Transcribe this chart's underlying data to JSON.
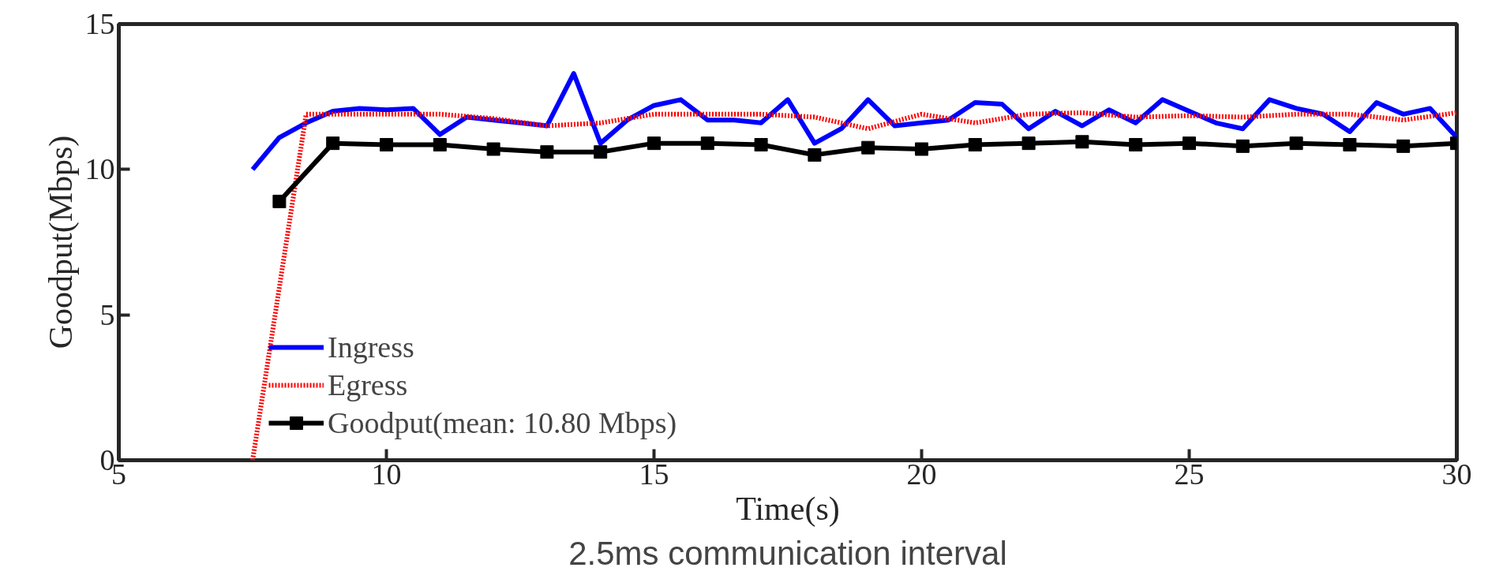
{
  "chart_data": {
    "type": "line",
    "xlabel": "Time(s)",
    "ylabel": "Goodput(Mbps)",
    "annotations": [
      "2.5ms communication interval"
    ],
    "xlim": [
      5,
      30
    ],
    "ylim": [
      0,
      15
    ],
    "xticks": [
      5,
      10,
      15,
      20,
      25,
      30
    ],
    "yticks": [
      0,
      5,
      10,
      15
    ],
    "grid": false,
    "legend": "bottom left",
    "series": [
      {
        "name": "Ingress",
        "color": "#0000ff",
        "line_style": "solid",
        "marker": "none",
        "x": [
          7.5,
          8,
          8.5,
          9,
          9.5,
          10,
          10.5,
          11,
          11.5,
          12,
          12.5,
          13,
          13.5,
          14,
          14.5,
          15,
          15.5,
          16,
          16.5,
          17,
          17.5,
          18,
          18.5,
          19,
          19.5,
          20,
          20.5,
          21,
          21.5,
          22,
          22.5,
          23,
          23.5,
          24,
          24.5,
          25,
          25.5,
          26,
          26.5,
          27,
          27.5,
          28,
          28.5,
          29,
          29.5,
          30
        ],
        "values": [
          10.0,
          11.1,
          11.6,
          12.0,
          12.1,
          12.05,
          12.1,
          11.2,
          11.8,
          11.7,
          11.6,
          11.5,
          13.3,
          10.9,
          11.7,
          12.2,
          12.4,
          11.7,
          11.7,
          11.6,
          12.4,
          10.9,
          11.4,
          12.4,
          11.5,
          11.6,
          11.7,
          12.3,
          12.25,
          11.4,
          12.0,
          11.5,
          12.05,
          11.6,
          12.4,
          12.0,
          11.6,
          11.4,
          12.4,
          12.1,
          11.9,
          11.3,
          12.3,
          11.9,
          12.1,
          11.1
        ]
      },
      {
        "name": "Egress",
        "color": "#ff0000",
        "line_style": "dotted",
        "marker": "none",
        "x": [
          7.5,
          8.5,
          10,
          11,
          12,
          13,
          14,
          15,
          16,
          17,
          18,
          19,
          20,
          21,
          22,
          23,
          24,
          25,
          26,
          27,
          28,
          29,
          30
        ],
        "values": [
          0,
          11.9,
          11.9,
          11.9,
          11.75,
          11.5,
          11.6,
          11.9,
          11.9,
          11.9,
          11.8,
          11.4,
          11.9,
          11.6,
          11.9,
          11.95,
          11.8,
          11.85,
          11.8,
          11.9,
          11.9,
          11.7,
          11.95
        ]
      },
      {
        "name": "Goodput(mean: 10.80 Mbps)",
        "color": "#000000",
        "line_style": "solid",
        "marker": "square",
        "x": [
          8,
          9,
          10,
          11,
          12,
          13,
          14,
          15,
          16,
          17,
          18,
          19,
          20,
          21,
          22,
          23,
          24,
          25,
          26,
          27,
          28,
          29,
          30
        ],
        "values": [
          8.9,
          10.9,
          10.85,
          10.85,
          10.7,
          10.6,
          10.6,
          10.9,
          10.9,
          10.85,
          10.5,
          10.75,
          10.7,
          10.85,
          10.9,
          10.95,
          10.85,
          10.9,
          10.8,
          10.9,
          10.85,
          10.8,
          10.9
        ]
      }
    ]
  }
}
